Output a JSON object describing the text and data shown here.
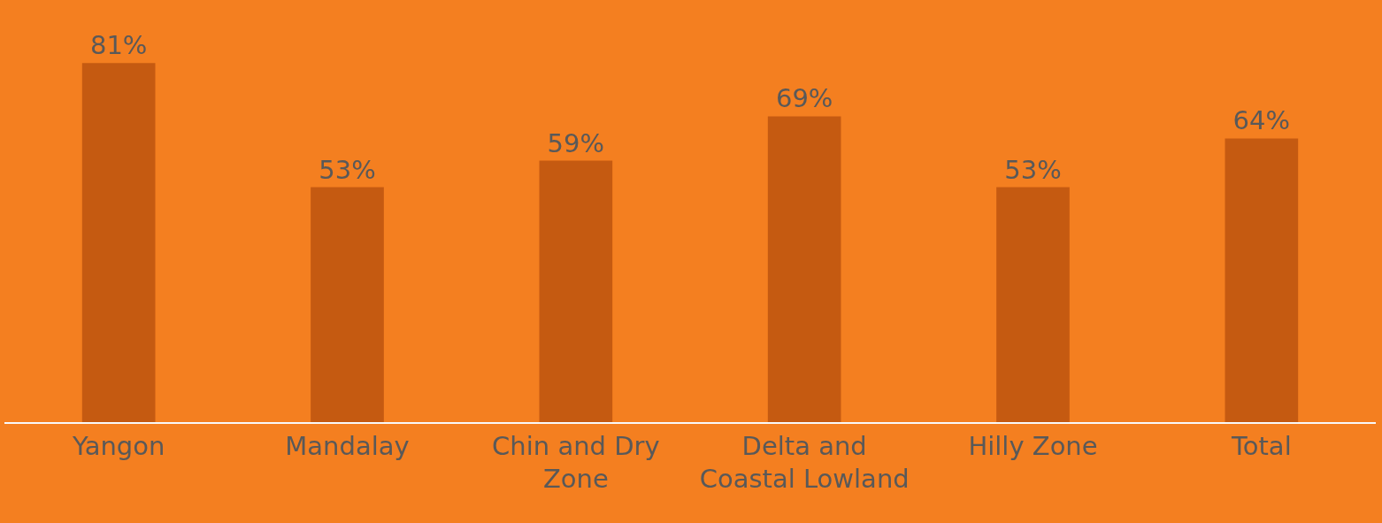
{
  "chart_data": {
    "type": "bar",
    "categories": [
      "Yangon",
      "Mandalay",
      "Chin and Dry Zone",
      "Delta and Coastal Lowland",
      "Hilly Zone",
      "Total"
    ],
    "values": [
      81,
      53,
      59,
      69,
      53,
      64
    ],
    "value_labels": [
      "81%",
      "53%",
      "59%",
      "69%",
      "53%",
      "64%"
    ],
    "color": "#c55a11"
  }
}
